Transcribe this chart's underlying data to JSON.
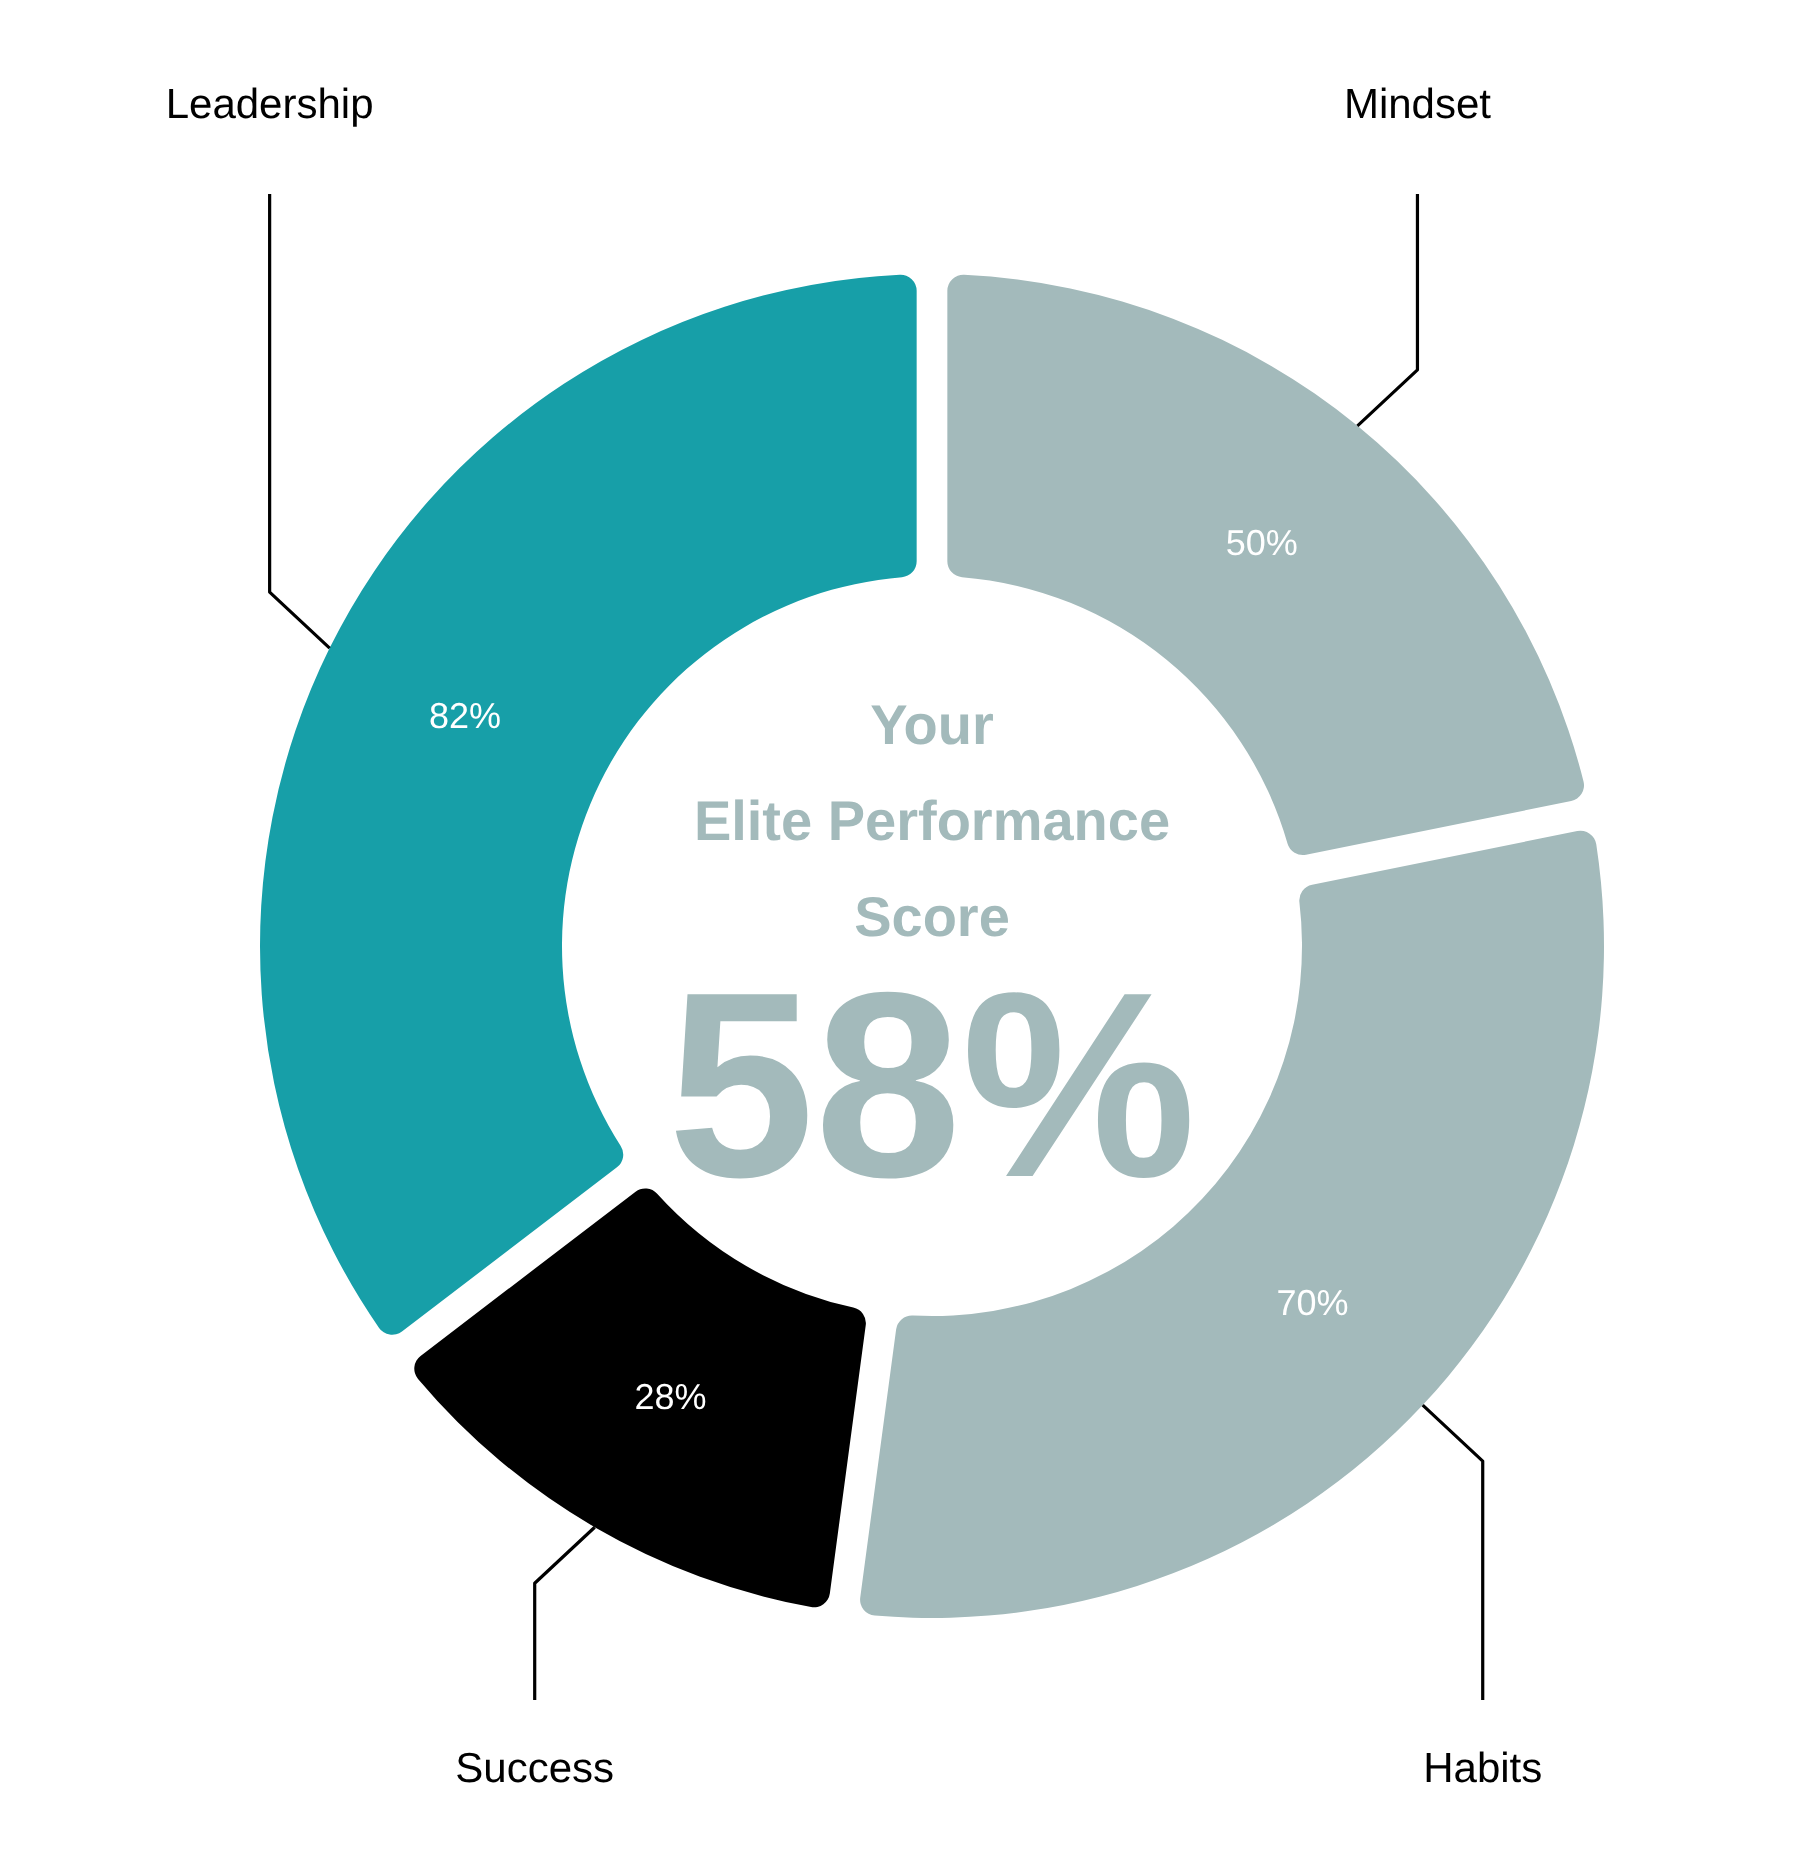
{
  "chart_data": {
    "type": "donut",
    "title": "Your\nElite Performance\nScore",
    "subtitle": "58%",
    "categories": [
      "Mindset",
      "Habits",
      "Success",
      "Leadership"
    ],
    "values": [
      50,
      70,
      28,
      82
    ],
    "colors": [
      "#a3babb",
      "#a3babb",
      "#000000",
      "#179fa8"
    ],
    "value_labels": [
      "50%",
      "70%",
      "28%",
      "82%"
    ]
  }
}
